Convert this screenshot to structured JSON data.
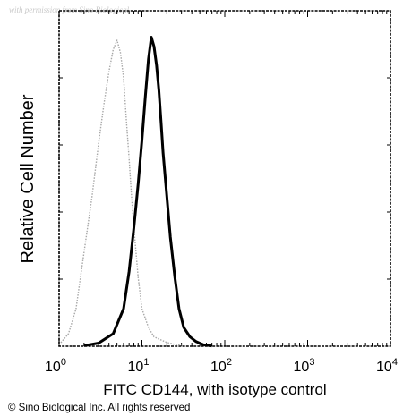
{
  "watermark": "with permission from Sino Biological",
  "copyright": "© Sino Biological Inc. All rights reserved",
  "chart_data": {
    "type": "line",
    "title": "",
    "xlabel": "FITC CD144, with isotype control",
    "ylabel": "Relative Cell Number",
    "x_scale": "log",
    "xlim": [
      1,
      10000
    ],
    "ylim": [
      0,
      100
    ],
    "grid": false,
    "legend": "none",
    "x_ticks": [
      {
        "base": "10",
        "exp": "0",
        "value": 1
      },
      {
        "base": "10",
        "exp": "1",
        "value": 10
      },
      {
        "base": "10",
        "exp": "2",
        "value": 100
      },
      {
        "base": "10",
        "exp": "3",
        "value": 1000
      },
      {
        "base": "10",
        "exp": "4",
        "value": 10000
      }
    ],
    "series": [
      {
        "color": "#a8a8a8",
        "style": "thin-dotted",
        "x": [
          1,
          1.3,
          1.6,
          2.0,
          2.5,
          3.0,
          3.5,
          4.0,
          4.5,
          5.0,
          5.5,
          6.0,
          6.5,
          7.0,
          7.5,
          8.0,
          9.0,
          10.0,
          12.0,
          14.0,
          17.0,
          20.0,
          25.0,
          30.0
        ],
        "y": [
          0.5,
          4,
          12,
          30,
          48,
          65,
          78,
          88,
          95,
          98,
          94,
          86,
          72,
          60,
          48,
          38,
          22,
          12,
          6,
          3,
          2,
          1.2,
          0.6,
          0.3
        ]
      },
      {
        "color": "#000000",
        "style": "thick-solid",
        "x": [
          2.0,
          3.0,
          4.5,
          6.0,
          7.0,
          8.0,
          9.0,
          10.0,
          11.0,
          12.0,
          13.0,
          14.0,
          15.0,
          16.0,
          17.0,
          18.0,
          20.0,
          22.0,
          25.0,
          28.0,
          32.0,
          38.0,
          45.0,
          55.0,
          70.0
        ],
        "y": [
          0.2,
          1,
          4,
          12,
          24,
          38,
          52,
          66,
          80,
          92,
          99,
          96,
          90,
          82,
          72,
          62,
          48,
          35,
          22,
          12,
          6,
          3,
          1.5,
          0.5,
          0.1
        ]
      }
    ]
  }
}
